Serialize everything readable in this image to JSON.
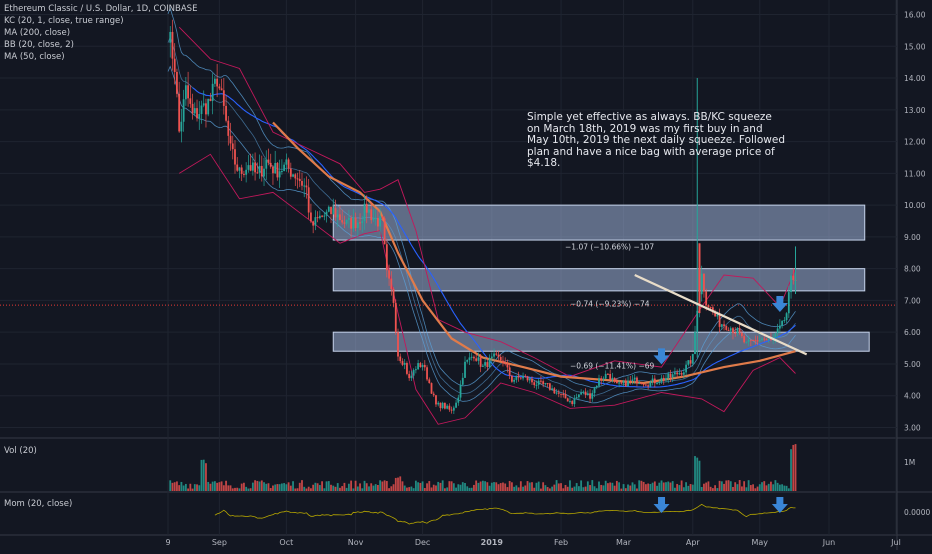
{
  "header": {
    "symbol_line": "Ethereum Classic / U.S. Dollar, 1D, COINBASE",
    "indicators": [
      "KC (20, 1, close, true range)",
      "MA (200, close)",
      "BB (20, close, 2)",
      "MA (50, close)"
    ]
  },
  "annotation_text": "Simple yet effective as always. BB/KC squeeze on March 18th, 2019 was my first buy in and May 10th, 2019 the next daily squeeze. Followed plan and have a nice bag with average price of $4.18.",
  "measure_labels": [
    {
      "text": "−1.07 (−10.66%) −107",
      "price": 8.7
    },
    {
      "text": "−0.74 (−9.23%) −74",
      "price": 6.9
    },
    {
      "text": "−0.69 (−11.41%) −69",
      "price": 4.95
    }
  ],
  "panes": {
    "volume_label": "Vol (20)",
    "momentum_label": "Mom (20, close)",
    "volume_tick": "1M",
    "momentum_tick": "0.0000"
  },
  "colors": {
    "background": "#131722",
    "up": "#26a69a",
    "down": "#ef5350",
    "ma200": "#e07b4a",
    "ma50": "#2962ff",
    "bb": "#c2185b",
    "kc": "#5aa0d8",
    "zones": "#9fb3d8",
    "arrows": "#3a86d6",
    "trendline": "#e8dcc8",
    "price_line": "#e53935",
    "momentum": "#b8a800"
  },
  "chart_data": {
    "type": "candlestick",
    "title": "Ethereum Classic / U.S. Dollar, 1D, COINBASE",
    "xlabel": "",
    "ylabel": "",
    "ylim": [
      2.7,
      16.3
    ],
    "y_ticks": [
      "16.00",
      "15.00",
      "14.00",
      "13.00",
      "12.00",
      "11.00",
      "10.00",
      "9.00",
      "8.00",
      "7.00",
      "6.00",
      "5.00",
      "4.00",
      "3.00"
    ],
    "x_ticks": [
      "9",
      "Sep",
      "Oct",
      "Nov",
      "Dec",
      "2019",
      "Feb",
      "Mar",
      "Apr",
      "May",
      "Jun",
      "Jul"
    ],
    "x_tick_dates": [
      "2018-08-09",
      "2018-09-01",
      "2018-10-01",
      "2018-11-01",
      "2018-12-01",
      "2019-01-01",
      "2019-02-01",
      "2019-03-01",
      "2019-04-01",
      "2019-05-01",
      "2019-06-01",
      "2019-07-01"
    ],
    "x_range": [
      "2018-08-09",
      "2019-07-01"
    ],
    "last_date": "2019-05-17",
    "price_line": 6.85,
    "grid": true,
    "close_path": [
      {
        "date": "2018-08-09",
        "close": 15.5
      },
      {
        "date": "2018-08-12",
        "close": 14.4
      },
      {
        "date": "2018-08-14",
        "close": 12.3
      },
      {
        "date": "2018-08-17",
        "close": 13.6
      },
      {
        "date": "2018-08-20",
        "close": 12.8
      },
      {
        "date": "2018-08-24",
        "close": 13.0
      },
      {
        "date": "2018-08-28",
        "close": 13.3
      },
      {
        "date": "2018-08-31",
        "close": 14.0
      },
      {
        "date": "2018-09-03",
        "close": 13.0
      },
      {
        "date": "2018-09-06",
        "close": 11.7
      },
      {
        "date": "2018-09-10",
        "close": 11.0
      },
      {
        "date": "2018-09-14",
        "close": 11.3
      },
      {
        "date": "2018-09-18",
        "close": 10.9
      },
      {
        "date": "2018-09-22",
        "close": 11.4
      },
      {
        "date": "2018-09-26",
        "close": 11.1
      },
      {
        "date": "2018-10-01",
        "close": 11.2
      },
      {
        "date": "2018-10-06",
        "close": 10.9
      },
      {
        "date": "2018-10-10",
        "close": 10.5
      },
      {
        "date": "2018-10-12",
        "close": 9.3
      },
      {
        "date": "2018-10-16",
        "close": 9.6
      },
      {
        "date": "2018-10-22",
        "close": 9.8
      },
      {
        "date": "2018-10-28",
        "close": 9.4
      },
      {
        "date": "2018-11-02",
        "close": 9.5
      },
      {
        "date": "2018-11-06",
        "close": 9.9
      },
      {
        "date": "2018-11-09",
        "close": 9.6
      },
      {
        "date": "2018-11-13",
        "close": 9.4
      },
      {
        "date": "2018-11-15",
        "close": 7.8
      },
      {
        "date": "2018-11-18",
        "close": 7.0
      },
      {
        "date": "2018-11-20",
        "close": 5.3
      },
      {
        "date": "2018-11-23",
        "close": 5.0
      },
      {
        "date": "2018-11-25",
        "close": 4.5
      },
      {
        "date": "2018-11-28",
        "close": 4.9
      },
      {
        "date": "2018-12-01",
        "close": 5.0
      },
      {
        "date": "2018-12-04",
        "close": 4.4
      },
      {
        "date": "2018-12-07",
        "close": 3.7
      },
      {
        "date": "2018-12-10",
        "close": 3.7
      },
      {
        "date": "2018-12-14",
        "close": 3.5
      },
      {
        "date": "2018-12-17",
        "close": 4.0
      },
      {
        "date": "2018-12-20",
        "close": 5.0
      },
      {
        "date": "2018-12-24",
        "close": 5.3
      },
      {
        "date": "2018-12-28",
        "close": 4.9
      },
      {
        "date": "2019-01-02",
        "close": 5.2
      },
      {
        "date": "2019-01-06",
        "close": 5.1
      },
      {
        "date": "2019-01-10",
        "close": 4.5
      },
      {
        "date": "2019-01-15",
        "close": 4.6
      },
      {
        "date": "2019-01-20",
        "close": 4.4
      },
      {
        "date": "2019-01-26",
        "close": 4.3
      },
      {
        "date": "2019-02-01",
        "close": 4.0
      },
      {
        "date": "2019-02-06",
        "close": 3.8
      },
      {
        "date": "2019-02-10",
        "close": 4.1
      },
      {
        "date": "2019-02-14",
        "close": 4.0
      },
      {
        "date": "2019-02-18",
        "close": 4.5
      },
      {
        "date": "2019-02-22",
        "close": 4.7
      },
      {
        "date": "2019-02-26",
        "close": 4.3
      },
      {
        "date": "2019-03-02",
        "close": 4.4
      },
      {
        "date": "2019-03-07",
        "close": 4.5
      },
      {
        "date": "2019-03-12",
        "close": 4.4
      },
      {
        "date": "2019-03-17",
        "close": 4.5
      },
      {
        "date": "2019-03-22",
        "close": 4.6
      },
      {
        "date": "2019-03-28",
        "close": 4.8
      },
      {
        "date": "2019-04-01",
        "close": 5.2
      },
      {
        "date": "2019-04-03",
        "close": 6.8
      },
      {
        "date": "2019-04-05",
        "close": 7.8
      },
      {
        "date": "2019-04-07",
        "close": 7.0
      },
      {
        "date": "2019-04-10",
        "close": 6.6
      },
      {
        "date": "2019-04-13",
        "close": 6.3
      },
      {
        "date": "2019-04-17",
        "close": 6.2
      },
      {
        "date": "2019-04-21",
        "close": 6.0
      },
      {
        "date": "2019-04-25",
        "close": 5.6
      },
      {
        "date": "2019-04-28",
        "close": 5.7
      },
      {
        "date": "2019-05-02",
        "close": 5.8
      },
      {
        "date": "2019-05-06",
        "close": 5.7
      },
      {
        "date": "2019-05-09",
        "close": 6.0
      },
      {
        "date": "2019-05-11",
        "close": 6.2
      },
      {
        "date": "2019-05-13",
        "close": 6.6
      },
      {
        "date": "2019-05-15",
        "close": 7.6
      },
      {
        "date": "2019-05-17",
        "close": 7.8
      }
    ],
    "ma200": [
      {
        "date": "2018-09-25",
        "value": 12.6
      },
      {
        "date": "2018-10-06",
        "value": 11.8
      },
      {
        "date": "2018-10-20",
        "value": 10.9
      },
      {
        "date": "2018-11-03",
        "value": 10.4
      },
      {
        "date": "2018-11-12",
        "value": 9.8
      },
      {
        "date": "2018-11-20",
        "value": 8.5
      },
      {
        "date": "2018-12-01",
        "value": 7.0
      },
      {
        "date": "2018-12-14",
        "value": 5.8
      },
      {
        "date": "2018-12-28",
        "value": 5.2
      },
      {
        "date": "2019-01-15",
        "value": 4.9
      },
      {
        "date": "2019-02-01",
        "value": 4.6
      },
      {
        "date": "2019-02-20",
        "value": 4.5
      },
      {
        "date": "2019-03-10",
        "value": 4.4
      },
      {
        "date": "2019-03-28",
        "value": 4.6
      },
      {
        "date": "2019-04-15",
        "value": 4.9
      },
      {
        "date": "2019-05-01",
        "value": 5.1
      },
      {
        "date": "2019-05-17",
        "value": 5.4
      }
    ],
    "bb_upper": [
      {
        "date": "2018-08-14",
        "value": 15.6
      },
      {
        "date": "2018-08-28",
        "value": 14.6
      },
      {
        "date": "2018-09-10",
        "value": 14.3
      },
      {
        "date": "2018-09-25",
        "value": 12.3
      },
      {
        "date": "2018-10-10",
        "value": 11.8
      },
      {
        "date": "2018-10-25",
        "value": 11.3
      },
      {
        "date": "2018-11-05",
        "value": 10.4
      },
      {
        "date": "2018-11-12",
        "value": 10.5
      },
      {
        "date": "2018-11-20",
        "value": 10.8
      },
      {
        "date": "2018-11-28",
        "value": 9.2
      },
      {
        "date": "2018-12-08",
        "value": 6.4
      },
      {
        "date": "2018-12-20",
        "value": 6.0
      },
      {
        "date": "2019-01-05",
        "value": 5.7
      },
      {
        "date": "2019-01-20",
        "value": 5.2
      },
      {
        "date": "2019-02-05",
        "value": 4.6
      },
      {
        "date": "2019-02-25",
        "value": 5.1
      },
      {
        "date": "2019-03-18",
        "value": 4.9
      },
      {
        "date": "2019-04-05",
        "value": 6.8
      },
      {
        "date": "2019-04-15",
        "value": 7.8
      },
      {
        "date": "2019-04-28",
        "value": 7.7
      },
      {
        "date": "2019-05-10",
        "value": 6.8
      },
      {
        "date": "2019-05-17",
        "value": 8.0
      }
    ],
    "bb_lower": [
      {
        "date": "2018-08-14",
        "value": 11.0
      },
      {
        "date": "2018-08-28",
        "value": 11.6
      },
      {
        "date": "2018-09-10",
        "value": 10.2
      },
      {
        "date": "2018-09-25",
        "value": 10.4
      },
      {
        "date": "2018-10-10",
        "value": 9.6
      },
      {
        "date": "2018-10-25",
        "value": 8.8
      },
      {
        "date": "2018-11-05",
        "value": 9.1
      },
      {
        "date": "2018-11-12",
        "value": 9.2
      },
      {
        "date": "2018-11-20",
        "value": 6.6
      },
      {
        "date": "2018-11-28",
        "value": 4.2
      },
      {
        "date": "2018-12-08",
        "value": 3.1
      },
      {
        "date": "2018-12-20",
        "value": 3.3
      },
      {
        "date": "2019-01-05",
        "value": 4.4
      },
      {
        "date": "2019-01-20",
        "value": 4.1
      },
      {
        "date": "2019-02-05",
        "value": 3.6
      },
      {
        "date": "2019-02-25",
        "value": 3.7
      },
      {
        "date": "2019-03-18",
        "value": 4.1
      },
      {
        "date": "2019-04-05",
        "value": 3.9
      },
      {
        "date": "2019-04-15",
        "value": 3.5
      },
      {
        "date": "2019-04-28",
        "value": 4.8
      },
      {
        "date": "2019-05-10",
        "value": 5.2
      },
      {
        "date": "2019-05-17",
        "value": 4.7
      }
    ],
    "zones": [
      {
        "from": 8.9,
        "to": 10.0,
        "start": "2018-10-22",
        "end": "2019-06-17"
      },
      {
        "from": 7.3,
        "to": 8.0,
        "start": "2018-10-22",
        "end": "2019-06-17"
      },
      {
        "from": 5.4,
        "to": 6.0,
        "start": "2018-10-22",
        "end": "2019-06-19"
      }
    ],
    "trendline": [
      {
        "date": "2019-03-06",
        "value": 7.8
      },
      {
        "date": "2019-05-22",
        "value": 5.3
      }
    ],
    "arrows": [
      {
        "date": "2019-03-18",
        "price": 5.05
      },
      {
        "date": "2019-05-10",
        "price": 6.7
      }
    ],
    "momentum_arrows": [
      "2019-03-18",
      "2019-05-10"
    ],
    "volume_spikes": [
      {
        "date": "2018-08-25",
        "level": 0.72
      },
      {
        "date": "2018-11-20",
        "level": 0.33
      },
      {
        "date": "2019-04-03",
        "level": 0.78
      },
      {
        "date": "2019-05-16",
        "level": 1.0
      }
    ]
  }
}
